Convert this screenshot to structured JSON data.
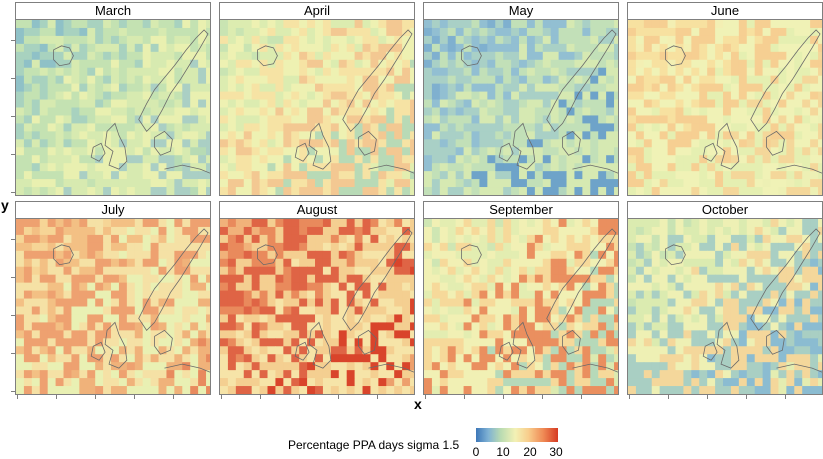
{
  "panels": [
    {
      "title": "March",
      "palette": "blue-green"
    },
    {
      "title": "April",
      "palette": "green-orange"
    },
    {
      "title": "May",
      "palette": "blue"
    },
    {
      "title": "June",
      "palette": "yellow-orange"
    },
    {
      "title": "July",
      "palette": "orange-red"
    },
    {
      "title": "August",
      "palette": "red"
    },
    {
      "title": "September",
      "palette": "green-red"
    },
    {
      "title": "October",
      "palette": "green-blue"
    }
  ],
  "axes": {
    "x_label": "x",
    "y_label": "y"
  },
  "legend": {
    "title": "Percentage PPA days sigma 1.5",
    "ticks": [
      "0",
      "10",
      "20",
      "30"
    ],
    "colors": [
      "#3d77b8",
      "#7fb2d4",
      "#b9dbb2",
      "#f3f1b5",
      "#f8cd8c",
      "#ef8a55",
      "#d63a22"
    ]
  }
}
